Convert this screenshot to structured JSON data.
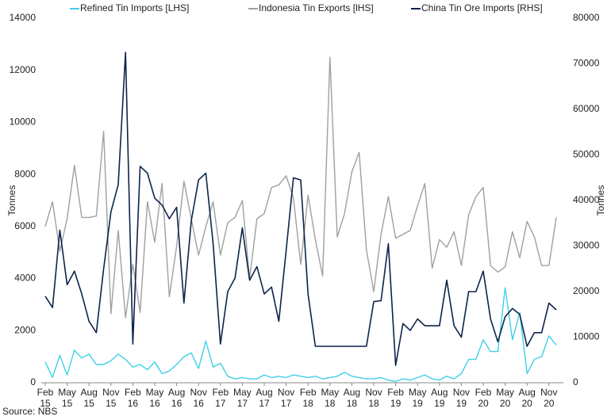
{
  "chart_data": {
    "type": "line",
    "categories": [
      "Feb 15",
      null,
      null,
      "May 15",
      null,
      null,
      "Aug 15",
      null,
      null,
      "Nov 15",
      null,
      null,
      "Feb 16",
      null,
      null,
      "May 16",
      null,
      null,
      "Aug 16",
      null,
      null,
      "Nov 16",
      null,
      null,
      "Feb 17",
      null,
      null,
      "May 17",
      null,
      null,
      "Aug 17",
      null,
      null,
      "Nov 17",
      null,
      null,
      "Feb 18",
      null,
      null,
      "May 18",
      null,
      null,
      "Aug 18",
      null,
      null,
      "Nov 18",
      null,
      null,
      "Feb 19",
      null,
      null,
      "May 19",
      null,
      null,
      "Aug 19",
      null,
      null,
      "Nov 19",
      null,
      null,
      "Feb 20",
      null,
      null,
      "May 20",
      null,
      null,
      "Aug 20",
      null,
      null,
      "Nov 20",
      null
    ],
    "series": [
      {
        "name": "Refined Tin Imports [LHS]",
        "color": "#3fd0e8",
        "values": [
          800,
          200,
          1050,
          300,
          1250,
          950,
          1100,
          700,
          700,
          850,
          1100,
          900,
          600,
          700,
          500,
          800,
          350,
          450,
          700,
          1000,
          1150,
          550,
          1600,
          600,
          750,
          250,
          150,
          200,
          150,
          150,
          300,
          200,
          250,
          200,
          300,
          250,
          200,
          250,
          150,
          200,
          250,
          400,
          250,
          200,
          150,
          150,
          200,
          100,
          50,
          150,
          100,
          200,
          300,
          150,
          100,
          250,
          150,
          350,
          900,
          900,
          1650,
          1200,
          1200,
          3650,
          1650,
          2700,
          350,
          900,
          1000,
          1800,
          1450
        ]
      },
      {
        "name": "Indonesia Tin Exports [lHS]",
        "color": "#a0a0a0",
        "values": [
          6000,
          6950,
          5050,
          6300,
          8350,
          6350,
          6350,
          6400,
          9650,
          2650,
          5850,
          2500,
          4550,
          2700,
          6950,
          5400,
          7650,
          3300,
          5250,
          7750,
          6300,
          4900,
          6000,
          6950,
          4900,
          6150,
          6350,
          7000,
          4000,
          6300,
          6500,
          7500,
          7600,
          7950,
          7100,
          4550,
          7200,
          5500,
          4100,
          12500,
          5600,
          6500,
          8100,
          8850,
          5100,
          3500,
          5700,
          7150,
          5550,
          5700,
          5850,
          6800,
          7650,
          4400,
          5500,
          5200,
          5800,
          4500,
          6450,
          7150,
          7500,
          4500,
          4250,
          4450,
          5800,
          4800,
          6200,
          5600,
          4500,
          4500,
          6350
        ]
      },
      {
        "name": "China Tin Ore Imports [RHS]",
        "color": "#0c2549",
        "axis": "y2",
        "values": [
          19000,
          16500,
          33500,
          21500,
          24500,
          19500,
          13500,
          11000,
          25000,
          37500,
          43500,
          72500,
          8500,
          47500,
          46000,
          40500,
          39000,
          36000,
          38500,
          17500,
          35500,
          44500,
          46000,
          30500,
          8500,
          20000,
          23000,
          34000,
          22500,
          25500,
          19500,
          21000,
          13500,
          29000,
          45000,
          44500,
          19500,
          8000,
          8000,
          8000,
          8000,
          8000,
          8000,
          8000,
          8000,
          17800,
          18000,
          30500,
          3800,
          13000,
          11500,
          14000,
          12500,
          12500,
          12500,
          22500,
          12500,
          10000,
          20000,
          20000,
          24500,
          14000,
          9000,
          14500,
          16300,
          15000,
          8000,
          11000,
          11000,
          17500,
          16000
        ]
      }
    ],
    "ylabel": "Tonnes",
    "y2label": "Tonnes",
    "ylim": [
      0,
      14000
    ],
    "yticks": [
      0,
      2000,
      4000,
      6000,
      8000,
      10000,
      12000,
      14000
    ],
    "y2lim": [
      0,
      80000
    ],
    "y2ticks": [
      0,
      10000,
      20000,
      30000,
      40000,
      50000,
      60000,
      70000,
      80000
    ],
    "source": "Source: NBS",
    "legend": "top"
  }
}
